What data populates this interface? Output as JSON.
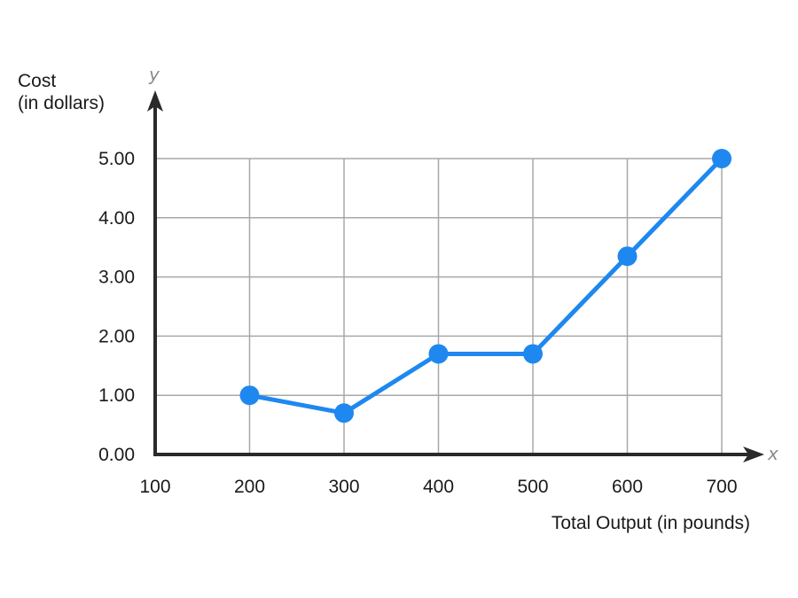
{
  "chart_data": {
    "type": "line",
    "x": [
      200,
      300,
      400,
      500,
      600,
      700
    ],
    "series": [
      {
        "values": [
          1.0,
          0.7,
          1.7,
          1.7,
          3.35,
          5.0
        ]
      }
    ],
    "x_ticks": [
      "100",
      "200",
      "300",
      "400",
      "500",
      "600",
      "700"
    ],
    "y_ticks": [
      "0.00",
      "1.00",
      "2.00",
      "3.00",
      "4.00",
      "5.00"
    ],
    "xlim": [
      100,
      700
    ],
    "ylim": [
      0,
      5
    ],
    "xlabel": "Total Output (in pounds)",
    "ylabel_line1": "Cost",
    "ylabel_line2": "(in dollars)",
    "x_axis_letter": "x",
    "y_axis_letter": "y",
    "grid": true,
    "colors": {
      "line": "#1e88f0",
      "grid": "#a8a8a8",
      "axis": "#2a2a2a"
    }
  }
}
